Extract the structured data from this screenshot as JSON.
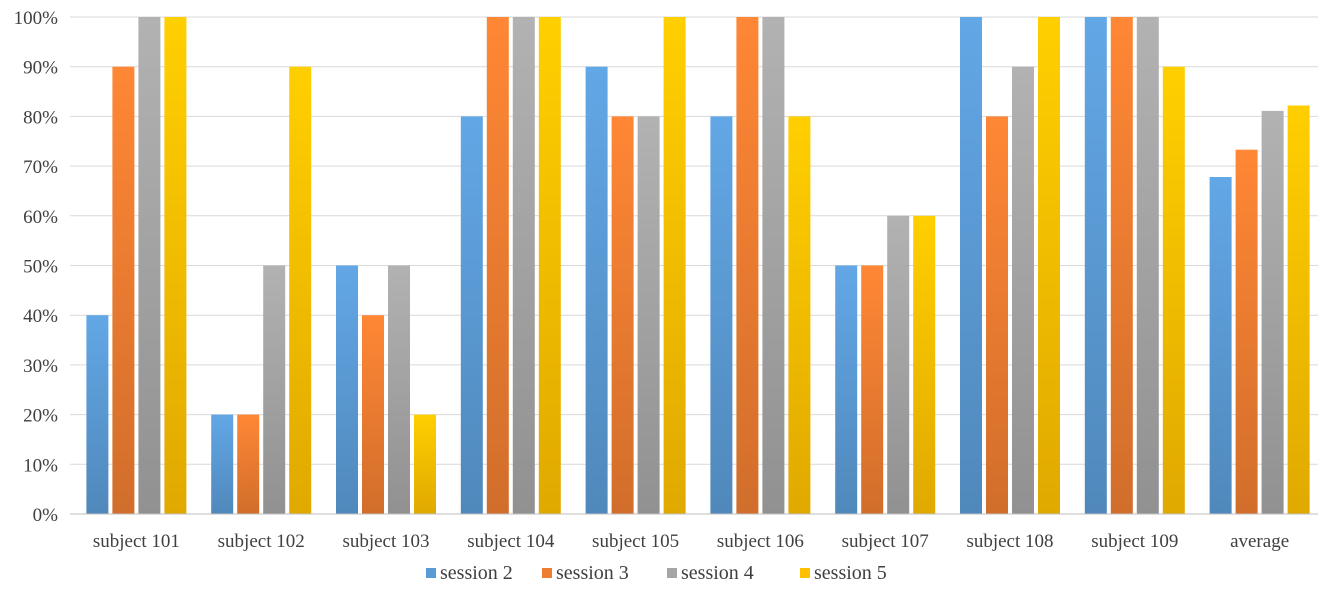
{
  "chart_data": {
    "type": "bar",
    "categories": [
      "subject 101",
      "subject 102",
      "subject 103",
      "subject 104",
      "subject 105",
      "subject 106",
      "subject 107",
      "subject 108",
      "subject 109",
      "average"
    ],
    "series": [
      {
        "name": "session 2",
        "color": "#5b9bd5",
        "values": [
          40,
          20,
          50,
          80,
          90,
          80,
          50,
          100,
          100,
          67.8
        ]
      },
      {
        "name": "session 3",
        "color": "#ed7d31",
        "values": [
          90,
          20,
          40,
          100,
          80,
          100,
          50,
          80,
          100,
          73.3
        ]
      },
      {
        "name": "session 4",
        "color": "#a5a5a5",
        "values": [
          100,
          50,
          50,
          100,
          80,
          100,
          60,
          90,
          100,
          81.1
        ]
      },
      {
        "name": "session 5",
        "color": "#ffc000",
        "values": [
          100,
          90,
          20,
          100,
          100,
          80,
          60,
          100,
          90,
          82.2
        ]
      }
    ],
    "yticks": [
      "0%",
      "10%",
      "20%",
      "30%",
      "40%",
      "50%",
      "60%",
      "70%",
      "80%",
      "90%",
      "100%"
    ],
    "ylim": [
      0,
      100
    ],
    "grid": true,
    "legend_position": "bottom"
  }
}
